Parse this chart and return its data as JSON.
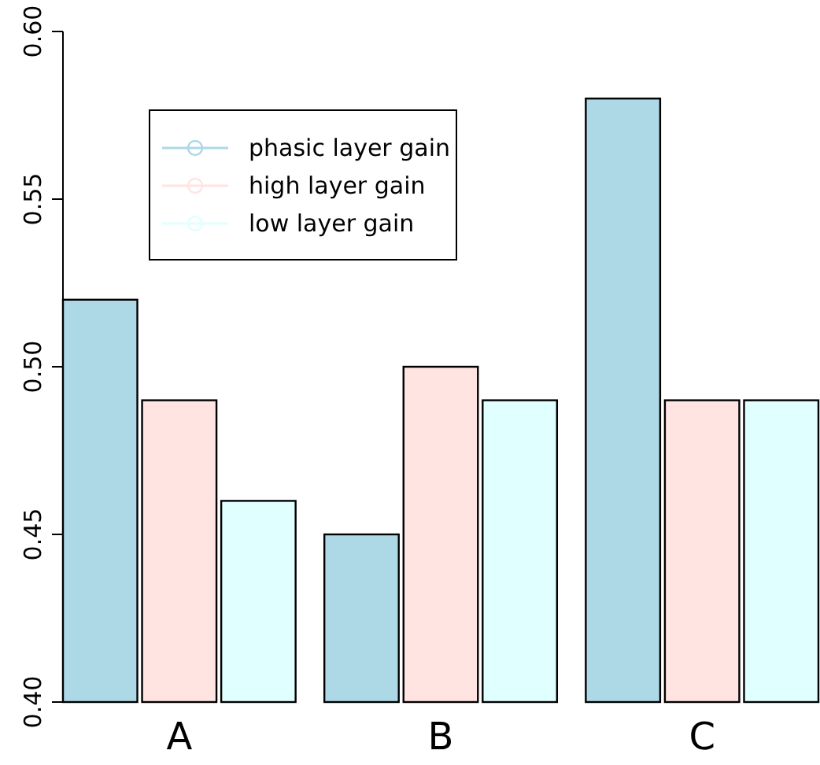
{
  "chart_data": {
    "type": "bar",
    "categories": [
      "A",
      "B",
      "C"
    ],
    "series": [
      {
        "name": "phasic layer gain",
        "color": "#add8e6",
        "values": [
          0.52,
          0.45,
          0.58
        ]
      },
      {
        "name": "high layer gain",
        "color": "#ffe4e1",
        "values": [
          0.49,
          0.5,
          0.49
        ]
      },
      {
        "name": "low layer gain",
        "color": "#e0ffff",
        "values": [
          0.46,
          0.49,
          0.49
        ]
      }
    ],
    "ylim": [
      0.4,
      0.6
    ],
    "yticks": [
      {
        "value": 0.4,
        "label": "0.40"
      },
      {
        "value": 0.45,
        "label": "0.45"
      },
      {
        "value": 0.5,
        "label": "0.50"
      },
      {
        "value": 0.55,
        "label": "0.55"
      },
      {
        "value": 0.6,
        "label": "0.60"
      }
    ],
    "legend": "top left",
    "marker": "circle",
    "grid": false
  }
}
